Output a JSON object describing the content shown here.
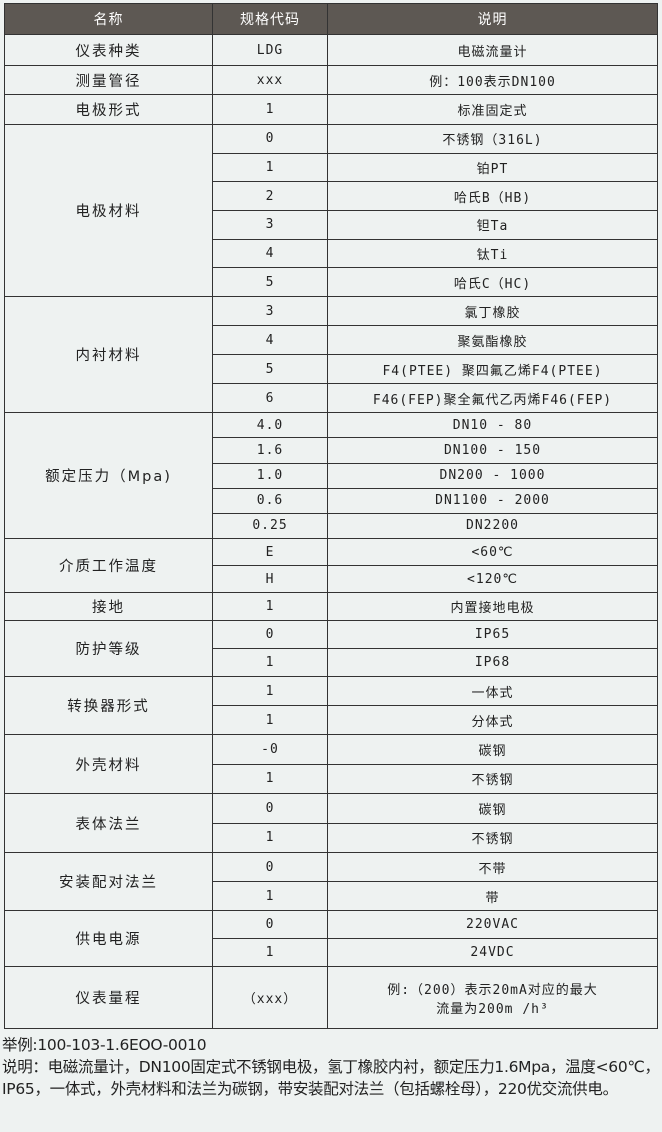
{
  "header": {
    "name": "名称",
    "code": "规格代码",
    "desc": "说明"
  },
  "groups": [
    {
      "name": "仪表种类",
      "rows": [
        [
          "LDG",
          "电磁流量计"
        ]
      ],
      "h": 31
    },
    {
      "name": "测量管径",
      "rows": [
        [
          "xxx",
          "例：100表示DN100"
        ]
      ],
      "h": 29
    },
    {
      "name": "电极形式",
      "rows": [
        [
          "1",
          "标准固定式"
        ]
      ],
      "h": 30
    },
    {
      "name": "电极材料",
      "rows": [
        [
          "0",
          "不锈钢（316L)"
        ],
        [
          "1",
          "铂PT"
        ],
        [
          "2",
          "哈氏B（HB)"
        ],
        [
          "3",
          "钽Ta"
        ],
        [
          "4",
          "钛Ti"
        ],
        [
          "5",
          "哈氏C（HC)"
        ]
      ],
      "h": 28.7
    },
    {
      "name": "内衬材料",
      "rows": [
        [
          "3",
          "氯丁橡胶"
        ],
        [
          "4",
          "聚氨酯橡胶"
        ],
        [
          "5",
          "F4(PTEE) 聚四氟乙烯F4(PTEE)"
        ],
        [
          "6",
          "F46(FEP)聚全氟代乙丙烯F46(FEP)"
        ]
      ],
      "h": 29
    },
    {
      "name": "额定压力（Mpa)",
      "rows": [
        [
          "4.0",
          "DN10 - 80"
        ],
        [
          "1.6",
          "DN100 - 150"
        ],
        [
          "1.0",
          "DN200 - 1000"
        ],
        [
          "0.6",
          "DN1100 - 2000"
        ],
        [
          "0.25",
          "DN2200"
        ]
      ],
      "h": 25.2
    },
    {
      "name": "介质工作温度",
      "rows": [
        [
          "E",
          "<60℃"
        ],
        [
          "H",
          "<120℃"
        ]
      ],
      "h": 27
    },
    {
      "name": "接地",
      "rows": [
        [
          "1",
          "内置接地电极"
        ]
      ],
      "h": 28
    },
    {
      "name": "防护等级",
      "rows": [
        [
          "0",
          "IP65"
        ],
        [
          "1",
          "IP68"
        ]
      ],
      "h": 28
    },
    {
      "name": "转换器形式",
      "rows": [
        [
          "1",
          "一体式"
        ],
        [
          "1",
          "分体式"
        ]
      ],
      "h": 29
    },
    {
      "name": "外壳材料",
      "rows": [
        [
          "-0",
          "碳钢"
        ],
        [
          "1",
          "不锈钢"
        ]
      ],
      "h": 29.5
    },
    {
      "name": "表体法兰",
      "rows": [
        [
          "0",
          "碳钢"
        ],
        [
          "1",
          "不锈钢"
        ]
      ],
      "h": 29.5
    },
    {
      "name": "安装配对法兰",
      "rows": [
        [
          "0",
          "不带"
        ],
        [
          "1",
          "带"
        ]
      ],
      "h": 29
    },
    {
      "name": "供电电源",
      "rows": [
        [
          "0",
          "220VAC"
        ],
        [
          "1",
          "24VDC"
        ]
      ],
      "h": 28
    },
    {
      "name": "仪表量程",
      "rows": [
        [
          "（xxx）",
          "例:（200）表示20mA对应的最大\n流量为200m  /h³"
        ]
      ],
      "h": 62
    }
  ],
  "footer": {
    "example": "举例:100-103-1.6EOO-0010",
    "note": "说明：电磁流量计，DN100固定式不锈钢电极，氢丁橡胶内衬，额定压力1.6Mpa，温度<60℃，IP65，一体式，外壳材料和法兰为碳钢，带安装配对法兰（包括螺栓母），220优交流供电。"
  }
}
